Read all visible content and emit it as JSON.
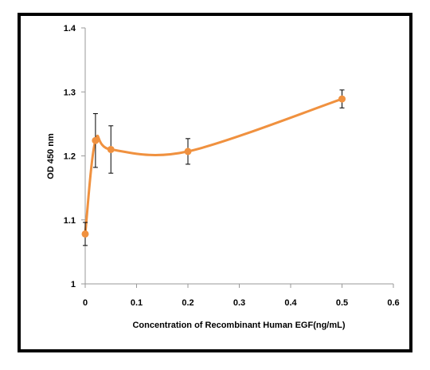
{
  "chart_data": {
    "type": "line",
    "xlabel": "Concentration of Recombinant  Human EGF(ng/mL)",
    "ylabel": "OD 450 nm",
    "xlim": [
      0,
      0.6
    ],
    "ylim": [
      1,
      1.4
    ],
    "x_ticks": [
      "0",
      "0.1",
      "0.2",
      "0.3",
      "0.4",
      "0.5",
      "0.6"
    ],
    "y_ticks": [
      "1",
      "1.1",
      "1.2",
      "1.3",
      "1.4"
    ],
    "grid": false,
    "line_color": "#F0913F",
    "smoothed": true,
    "series": [
      {
        "x": [
          0,
          0.02,
          0.05,
          0.2,
          0.5
        ],
        "y": [
          1.078,
          1.224,
          1.21,
          1.207,
          1.289
        ],
        "error": [
          0.018,
          0.042,
          0.037,
          0.02,
          0.014
        ]
      }
    ]
  }
}
